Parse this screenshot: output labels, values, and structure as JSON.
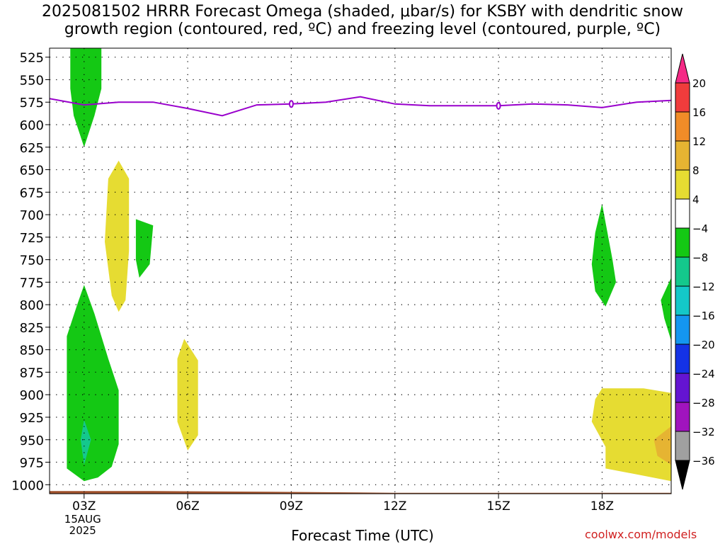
{
  "title": "2025081502 HRRR Forecast Omega (shaded, μbar/s) for KSBY with dendritic snow\ngrowth region (contoured, red, ºC) and freezing level (contoured, purple, ºC)",
  "credit": "coolwx.com/models",
  "chart_data": {
    "type": "heatmap",
    "xlabel": "Forecast Time (UTC)",
    "ylabel": "",
    "x_ticks": [
      {
        "hour": 3,
        "label": "03Z",
        "sub": [
          "15AUG",
          "2025"
        ]
      },
      {
        "hour": 6,
        "label": "06Z",
        "sub": []
      },
      {
        "hour": 9,
        "label": "09Z",
        "sub": []
      },
      {
        "hour": 12,
        "label": "12Z",
        "sub": []
      },
      {
        "hour": 15,
        "label": "15Z",
        "sub": []
      },
      {
        "hour": 18,
        "label": "18Z",
        "sub": []
      }
    ],
    "xlim": [
      2.0,
      20.0
    ],
    "ylim_hPa": [
      1010,
      515
    ],
    "y_ticks": [
      525,
      550,
      575,
      600,
      625,
      650,
      675,
      700,
      725,
      750,
      775,
      800,
      825,
      850,
      875,
      900,
      925,
      950,
      975,
      1000
    ],
    "grid": true,
    "colorbar": {
      "labels": [
        "20",
        "16",
        "12",
        "8",
        "4",
        "−4",
        "−8",
        "−12",
        "−16",
        "−20",
        "−24",
        "−28",
        "−32",
        "−36"
      ],
      "colors": [
        "#f52a86",
        "#f03c3c",
        "#f08c28",
        "#e6b432",
        "#e6dc32",
        "#ffffff",
        "#14c814",
        "#14c88c",
        "#14c8c8",
        "#1496f0",
        "#1432e6",
        "#6414d2",
        "#a014be",
        "#a0a0a0",
        "#000000"
      ]
    },
    "freezing_level": {
      "color": "#9900cc",
      "points": [
        [
          2.0,
          571
        ],
        [
          3.0,
          578
        ],
        [
          4.0,
          575
        ],
        [
          5.0,
          575
        ],
        [
          6.0,
          582
        ],
        [
          7.0,
          590
        ],
        [
          8.0,
          578
        ],
        [
          9.0,
          577
        ],
        [
          10.0,
          575
        ],
        [
          11.0,
          569
        ],
        [
          12.0,
          577
        ],
        [
          13.0,
          579
        ],
        [
          14.0,
          579
        ],
        [
          15.0,
          579
        ],
        [
          16.0,
          577
        ],
        [
          17.0,
          578
        ],
        [
          18.0,
          581
        ],
        [
          19.0,
          575
        ],
        [
          20.0,
          573
        ]
      ]
    },
    "omega_regions": [
      {
        "level": "-4 to -8",
        "color": "#14c814",
        "points": [
          [
            2.6,
            515
          ],
          [
            3.5,
            515
          ],
          [
            3.5,
            560
          ],
          [
            3.3,
            590
          ],
          [
            3.0,
            625
          ],
          [
            2.7,
            590
          ],
          [
            2.6,
            560
          ]
        ]
      },
      {
        "level": "4 to 8",
        "color": "#e6dc32",
        "points": [
          [
            4.0,
            640
          ],
          [
            4.3,
            660
          ],
          [
            4.3,
            740
          ],
          [
            4.2,
            795
          ],
          [
            4.0,
            808
          ],
          [
            3.8,
            790
          ],
          [
            3.6,
            730
          ],
          [
            3.7,
            660
          ]
        ]
      },
      {
        "level": "-4 to -8",
        "color": "#14c814",
        "points": [
          [
            4.5,
            705
          ],
          [
            5.0,
            712
          ],
          [
            4.9,
            755
          ],
          [
            4.6,
            770
          ],
          [
            4.5,
            750
          ]
        ]
      },
      {
        "level": "-4 to -8",
        "color": "#14c814",
        "points": [
          [
            3.0,
            778
          ],
          [
            3.3,
            810
          ],
          [
            3.7,
            860
          ],
          [
            4.0,
            895
          ],
          [
            4.0,
            955
          ],
          [
            3.8,
            980
          ],
          [
            3.4,
            992
          ],
          [
            3.0,
            996
          ],
          [
            2.5,
            982
          ],
          [
            2.5,
            835
          ],
          [
            2.8,
            800
          ]
        ]
      },
      {
        "level": "-8 to -12",
        "color": "#14c88c",
        "points": [
          [
            3.0,
            928
          ],
          [
            3.2,
            950
          ],
          [
            3.0,
            978
          ],
          [
            2.9,
            950
          ]
        ]
      },
      {
        "level": "4 to 8",
        "color": "#e6dc32",
        "points": [
          [
            5.9,
            838
          ],
          [
            6.3,
            862
          ],
          [
            6.3,
            945
          ],
          [
            6.0,
            962
          ],
          [
            5.7,
            930
          ],
          [
            5.7,
            860
          ]
        ]
      },
      {
        "level": "-4 to -8",
        "color": "#14c814",
        "points": [
          [
            18.0,
            688
          ],
          [
            18.3,
            750
          ],
          [
            18.4,
            775
          ],
          [
            18.1,
            802
          ],
          [
            17.8,
            785
          ],
          [
            17.7,
            755
          ],
          [
            17.8,
            720
          ]
        ]
      },
      {
        "level": "-4 to -8",
        "color": "#14c814",
        "points": [
          [
            20.0,
            770
          ],
          [
            20.0,
            840
          ],
          [
            19.8,
            815
          ],
          [
            19.7,
            795
          ]
        ]
      },
      {
        "level": "4 to 8",
        "color": "#e6dc32",
        "points": [
          [
            18.0,
            893
          ],
          [
            19.2,
            893
          ],
          [
            20.0,
            898
          ],
          [
            20.0,
            996
          ],
          [
            19.2,
            990
          ],
          [
            18.1,
            982
          ],
          [
            18.1,
            958
          ],
          [
            17.7,
            930
          ],
          [
            17.8,
            905
          ]
        ]
      },
      {
        "level": "8 to 12",
        "color": "#e6b432",
        "points": [
          [
            20.0,
            935
          ],
          [
            20.0,
            978
          ],
          [
            19.6,
            968
          ],
          [
            19.5,
            950
          ]
        ]
      }
    ],
    "terrain": {
      "color": "#a0522d",
      "points": [
        [
          2.0,
          1007
        ],
        [
          5.0,
          1007
        ],
        [
          9.0,
          1008
        ],
        [
          12.0,
          1009
        ],
        [
          16.0,
          1009
        ],
        [
          20.0,
          1009
        ]
      ]
    }
  }
}
